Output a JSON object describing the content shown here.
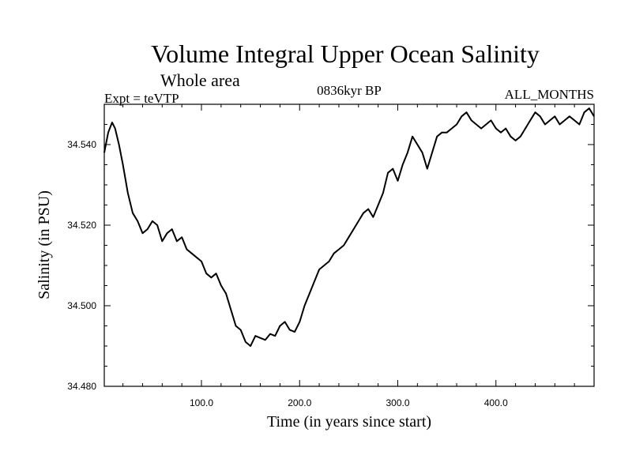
{
  "chart_data": {
    "type": "line",
    "title": "Volume Integral Upper Ocean Salinity",
    "subtitle": "Whole area",
    "left_label": "Expt = teVTP",
    "center_label": "0836kyr BP",
    "right_label": "ALL_MONTHS",
    "xlabel": "Time (in years since start)",
    "ylabel": "Salinity (in PSU)",
    "xlim": [
      1,
      500
    ],
    "ylim": [
      34.48,
      34.55
    ],
    "xticks": [
      100,
      200,
      300,
      400
    ],
    "xtick_labels": [
      "100.0",
      "200.0",
      "300.0",
      "400.0"
    ],
    "yticks": [
      34.48,
      34.5,
      34.52,
      34.54
    ],
    "ytick_labels": [
      "34.480",
      "34.500",
      "34.520",
      "34.540"
    ],
    "series": [
      {
        "name": "Salinity",
        "x": [
          1,
          5,
          9,
          12,
          16,
          20,
          25,
          30,
          35,
          40,
          45,
          50,
          55,
          60,
          65,
          70,
          75,
          80,
          85,
          90,
          95,
          100,
          105,
          110,
          115,
          120,
          125,
          130,
          135,
          140,
          145,
          150,
          155,
          160,
          165,
          170,
          175,
          180,
          185,
          190,
          195,
          200,
          205,
          210,
          215,
          220,
          225,
          230,
          235,
          240,
          245,
          250,
          255,
          260,
          265,
          270,
          275,
          280,
          285,
          290,
          295,
          300,
          305,
          310,
          315,
          320,
          325,
          330,
          335,
          340,
          345,
          350,
          355,
          360,
          365,
          370,
          375,
          380,
          385,
          390,
          395,
          400,
          405,
          410,
          415,
          420,
          425,
          430,
          435,
          440,
          445,
          450,
          455,
          460,
          465,
          470,
          475,
          480,
          485,
          490,
          495,
          500
        ],
        "values": [
          34.538,
          34.543,
          34.5455,
          34.544,
          34.54,
          34.535,
          34.528,
          34.523,
          34.521,
          34.518,
          34.519,
          34.521,
          34.52,
          34.516,
          34.518,
          34.519,
          34.516,
          34.517,
          34.514,
          34.513,
          34.512,
          34.511,
          34.508,
          34.507,
          34.508,
          34.505,
          34.503,
          34.499,
          34.495,
          34.494,
          34.491,
          34.49,
          34.4925,
          34.492,
          34.4915,
          34.493,
          34.4925,
          34.495,
          34.496,
          34.494,
          34.4935,
          34.496,
          34.5,
          34.503,
          34.506,
          34.509,
          34.51,
          34.511,
          34.513,
          34.514,
          34.515,
          34.517,
          34.519,
          34.521,
          34.523,
          34.524,
          34.522,
          34.525,
          34.528,
          34.533,
          34.534,
          34.531,
          34.535,
          34.538,
          34.542,
          34.54,
          34.538,
          34.534,
          34.538,
          34.542,
          34.543,
          34.543,
          34.544,
          34.545,
          34.547,
          34.548,
          34.546,
          34.545,
          34.544,
          34.545,
          34.546,
          34.544,
          34.543,
          34.544,
          34.542,
          34.541,
          34.542,
          34.544,
          34.546,
          34.548,
          34.547,
          34.545,
          34.546,
          34.547,
          34.545,
          34.546,
          34.547,
          34.546,
          34.545,
          34.548,
          34.549,
          34.547
        ]
      }
    ]
  }
}
